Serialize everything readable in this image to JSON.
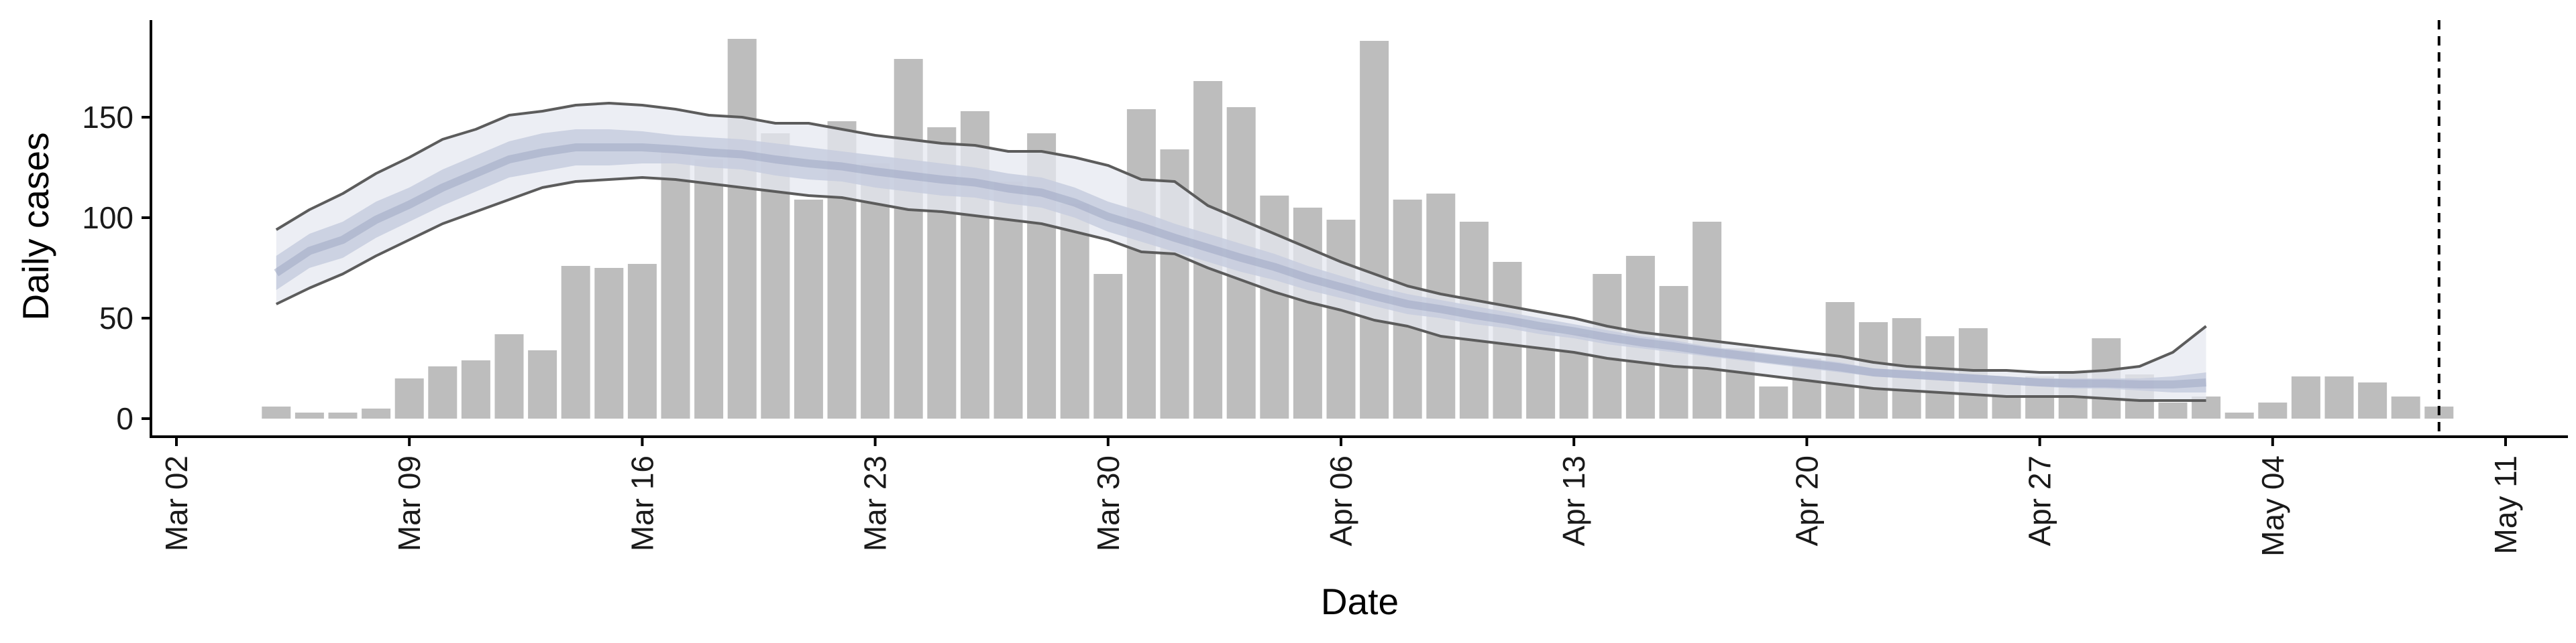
{
  "chart_data": {
    "type": "bar",
    "xlabel": "Date",
    "ylabel": "Daily cases",
    "x_start": "2020-03-02",
    "xlim": [
      "2020-03-02",
      "2020-05-11"
    ],
    "ylim": [
      -8,
      196
    ],
    "yticks": [
      0,
      50,
      100,
      150
    ],
    "xticks": [
      {
        "date": "2020-03-02",
        "label": "Mar 02"
      },
      {
        "date": "2020-03-09",
        "label": "Mar 09"
      },
      {
        "date": "2020-03-16",
        "label": "Mar 16"
      },
      {
        "date": "2020-03-23",
        "label": "Mar 23"
      },
      {
        "date": "2020-03-30",
        "label": "Mar 30"
      },
      {
        "date": "2020-04-06",
        "label": "Apr 06"
      },
      {
        "date": "2020-04-13",
        "label": "Apr 13"
      },
      {
        "date": "2020-04-20",
        "label": "Apr 20"
      },
      {
        "date": "2020-04-27",
        "label": "Apr 27"
      },
      {
        "date": "2020-05-04",
        "label": "May 04"
      },
      {
        "date": "2020-05-11",
        "label": "May 11"
      }
    ],
    "vline_date": "2020-05-09",
    "grid": false,
    "bars": {
      "start_date": "2020-03-05",
      "values": [
        6,
        3,
        3,
        5,
        20,
        26,
        29,
        42,
        34,
        76,
        75,
        77,
        133,
        129,
        189,
        142,
        109,
        148,
        127,
        179,
        145,
        153,
        118,
        142,
        107,
        72,
        154,
        134,
        168,
        155,
        111,
        105,
        99,
        188,
        109,
        112,
        98,
        78,
        45,
        42,
        72,
        81,
        66,
        98,
        35,
        16,
        30,
        58,
        48,
        50,
        41,
        45,
        18,
        21,
        23,
        40,
        22,
        8,
        11,
        3,
        8,
        21,
        21,
        18,
        11,
        6
      ],
      "color": "#bdbdbd"
    },
    "estimate": {
      "start_date": "2020-03-05",
      "end_date": "2020-04-30",
      "outer_upper": [
        94,
        104,
        112,
        122,
        130,
        139,
        144,
        151,
        153,
        156,
        157,
        156,
        154,
        151,
        150,
        147,
        147,
        144,
        141,
        139,
        137,
        136,
        133,
        133,
        130,
        126,
        119,
        118,
        106,
        99,
        92,
        85,
        78,
        72,
        66,
        62,
        59,
        56,
        53,
        50,
        46,
        43,
        41,
        39,
        37,
        35,
        33,
        31,
        28,
        26,
        25,
        24,
        24,
        23,
        23,
        24,
        26,
        33,
        46
      ],
      "outer_lower": [
        57,
        65,
        72,
        81,
        89,
        97,
        103,
        109,
        115,
        118,
        119,
        120,
        119,
        117,
        115,
        113,
        111,
        110,
        107,
        104,
        103,
        101,
        99,
        97,
        93,
        89,
        83,
        82,
        75,
        69,
        63,
        58,
        54,
        49,
        46,
        41,
        39,
        37,
        35,
        33,
        30,
        28,
        26,
        25,
        23,
        21,
        19,
        17,
        15,
        14,
        13,
        12,
        11,
        11,
        11,
        10,
        9,
        9,
        9
      ],
      "inner_upper": [
        81,
        92,
        98,
        108,
        115,
        124,
        131,
        138,
        142,
        144,
        144,
        143,
        141,
        140,
        139,
        137,
        135,
        133,
        131,
        129,
        127,
        125,
        122,
        120,
        115,
        108,
        103,
        97,
        92,
        87,
        82,
        76,
        71,
        66,
        62,
        59,
        56,
        53,
        50,
        47,
        44,
        41,
        39,
        36,
        34,
        32,
        30,
        28,
        25,
        24,
        23,
        22,
        21,
        20,
        20,
        20,
        20,
        21,
        23
      ],
      "inner_lower": [
        64,
        75,
        80,
        90,
        98,
        106,
        113,
        120,
        123,
        126,
        126,
        127,
        127,
        125,
        124,
        121,
        119,
        118,
        115,
        113,
        111,
        110,
        107,
        105,
        100,
        93,
        88,
        83,
        78,
        73,
        69,
        64,
        60,
        56,
        52,
        50,
        47,
        45,
        42,
        40,
        37,
        35,
        33,
        31,
        29,
        27,
        25,
        23,
        21,
        20,
        19,
        18,
        17,
        16,
        15,
        15,
        14,
        13,
        13
      ],
      "outer_color": "#e6e8f0",
      "inner_color": "#c7ccde",
      "core_color": "#9ea8c2",
      "line_color": "#5c5c5c"
    }
  }
}
